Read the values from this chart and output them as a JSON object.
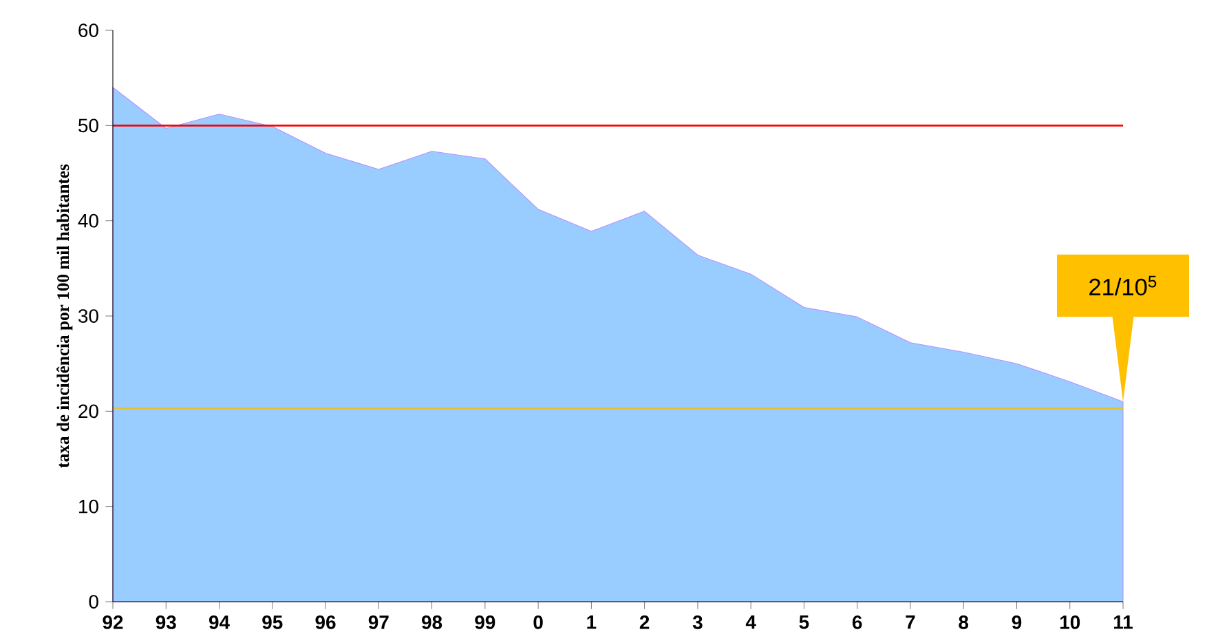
{
  "chart_data": {
    "type": "area",
    "ylabel": "taxa de incidência por 100 mil habitantes",
    "categories": [
      "92",
      "93",
      "94",
      "95",
      "96",
      "97",
      "98",
      "99",
      "0",
      "1",
      "2",
      "3",
      "4",
      "5",
      "6",
      "7",
      "8",
      "9",
      "10",
      "11"
    ],
    "values": [
      54.0,
      49.7,
      51.2,
      49.9,
      47.1,
      45.4,
      47.3,
      46.5,
      41.2,
      38.9,
      41.0,
      36.4,
      34.4,
      30.9,
      29.9,
      27.2,
      26.2,
      25.0,
      23.1,
      21.0
    ],
    "color": "#99ccff",
    "ylim": [
      0,
      60
    ],
    "yticks": [
      0,
      10,
      20,
      30,
      40,
      50,
      60
    ],
    "ref_lines": [
      {
        "axis": "y",
        "value": 50,
        "label": null,
        "color": "#ff0000"
      },
      {
        "axis": "y",
        "value": 20.3,
        "label": null,
        "color": "#e8c030"
      }
    ],
    "annotations": [
      {
        "text": "21/10$^{5}$",
        "x": "11",
        "y": 21
      }
    ]
  }
}
